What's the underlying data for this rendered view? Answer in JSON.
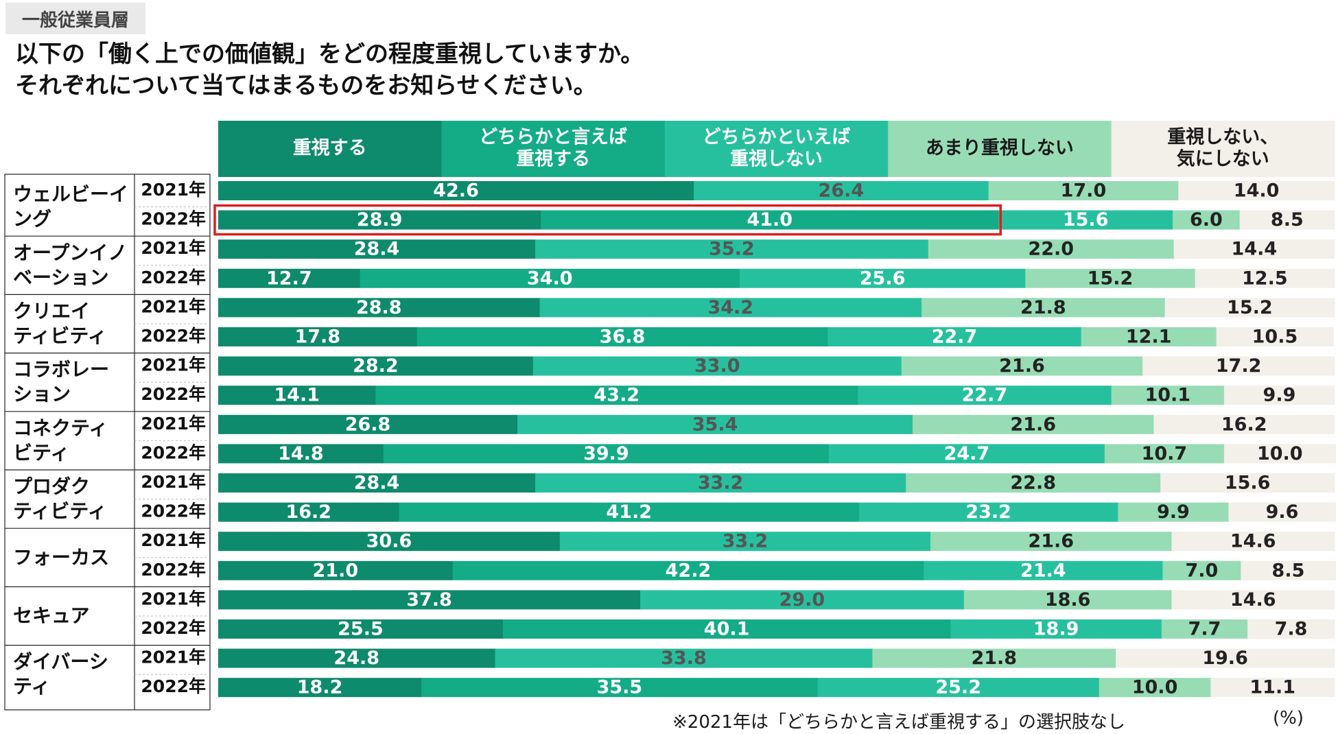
{
  "segment_tag": "一般従業員層",
  "question": {
    "line1": "以下の「働く上での価値観」をどの程度重視していますか。",
    "line2": "それぞれについて当てはまるものをお知らせください。"
  },
  "footnote": "※2021年は「どちらかと言えば重視する」の選択肢なし",
  "unit": "(%)",
  "colors": {
    "dark": "#0e8a6c",
    "mid": "#14ab87",
    "teal": "#27c09f",
    "light": "#97dcb5",
    "pale": "#f3efe9",
    "highlight": "#dd1f1f"
  },
  "chart_data": {
    "type": "bar",
    "orientation": "horizontal-stacked-100",
    "legend": [
      {
        "label": "重視する",
        "color": "#0e8a6c"
      },
      {
        "label": "どちらかと言えば\n重視する",
        "color": "#14ab87"
      },
      {
        "label": "どちらかといえば\n重視しない",
        "color": "#27c09f"
      },
      {
        "label": "あまり重視しない",
        "color": "#97dcb5"
      },
      {
        "label": "重視しない、\n気にしない",
        "color": "#f3efe9"
      }
    ],
    "categories": [
      {
        "label": "ウェルビーイ\nング",
        "rows": [
          {
            "year": "2021年",
            "values": [
              42.6,
              null,
              26.4,
              17.0,
              14.0
            ]
          },
          {
            "year": "2022年",
            "values": [
              28.9,
              41.0,
              15.6,
              6.0,
              8.5
            ],
            "highlight": true
          }
        ]
      },
      {
        "label": "オープンイノ\nベーション",
        "rows": [
          {
            "year": "2021年",
            "values": [
              28.4,
              null,
              35.2,
              22.0,
              14.4
            ]
          },
          {
            "year": "2022年",
            "values": [
              12.7,
              34.0,
              25.6,
              15.2,
              12.5
            ]
          }
        ]
      },
      {
        "label": "クリエイ\nティビティ",
        "rows": [
          {
            "year": "2021年",
            "values": [
              28.8,
              null,
              34.2,
              21.8,
              15.2
            ]
          },
          {
            "year": "2022年",
            "values": [
              17.8,
              36.8,
              22.7,
              12.1,
              10.5
            ]
          }
        ]
      },
      {
        "label": "コラボレー\nション",
        "rows": [
          {
            "year": "2021年",
            "values": [
              28.2,
              null,
              33.0,
              21.6,
              17.2
            ]
          },
          {
            "year": "2022年",
            "values": [
              14.1,
              43.2,
              22.7,
              10.1,
              9.9
            ]
          }
        ]
      },
      {
        "label": "コネクティ\nビティ",
        "rows": [
          {
            "year": "2021年",
            "values": [
              26.8,
              null,
              35.4,
              21.6,
              16.2
            ]
          },
          {
            "year": "2022年",
            "values": [
              14.8,
              39.9,
              24.7,
              10.7,
              10.0
            ]
          }
        ]
      },
      {
        "label": "プロダク\nティビティ",
        "rows": [
          {
            "year": "2021年",
            "values": [
              28.4,
              null,
              33.2,
              22.8,
              15.6
            ]
          },
          {
            "year": "2022年",
            "values": [
              16.2,
              41.2,
              23.2,
              9.9,
              9.6
            ]
          }
        ]
      },
      {
        "label": "フォーカス",
        "rows": [
          {
            "year": "2021年",
            "values": [
              30.6,
              null,
              33.2,
              21.6,
              14.6
            ]
          },
          {
            "year": "2022年",
            "values": [
              21.0,
              42.2,
              21.4,
              7.0,
              8.5
            ]
          }
        ]
      },
      {
        "label": "セキュア",
        "rows": [
          {
            "year": "2021年",
            "values": [
              37.8,
              null,
              29.0,
              18.6,
              14.6
            ]
          },
          {
            "year": "2022年",
            "values": [
              25.5,
              40.1,
              18.9,
              7.7,
              7.8
            ]
          }
        ]
      },
      {
        "label": "ダイバーシ\nティ",
        "rows": [
          {
            "year": "2021年",
            "values": [
              24.8,
              null,
              33.8,
              21.8,
              19.6
            ]
          },
          {
            "year": "2022年",
            "values": [
              18.2,
              35.5,
              25.2,
              10.0,
              11.1
            ]
          }
        ]
      }
    ]
  }
}
